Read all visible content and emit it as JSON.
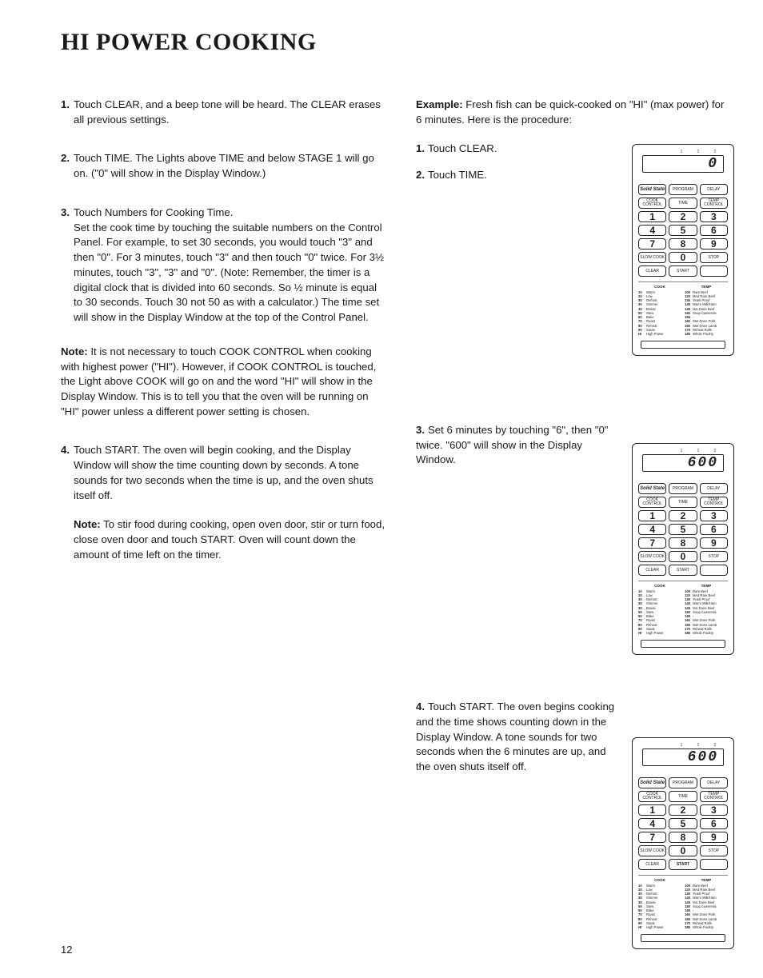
{
  "title": "HI POWER COOKING",
  "page_number": "12",
  "left_steps": [
    {
      "n": "1.",
      "t": "Touch CLEAR, and a beep tone will be heard. The CLEAR erases all previous settings."
    },
    {
      "n": "2.",
      "t": "Touch TIME. The Lights above TIME and below STAGE 1 will go on. (\"0\" will show in the Display Window.)"
    },
    {
      "n": "3.",
      "t": "Touch Numbers for Cooking Time.\nSet the cook time by touching the suitable numbers on the Control Panel. For example, to set 30 seconds, you would touch \"3\" and then \"0\". For 3 minutes, touch \"3\" and then touch \"0\" twice. For 3½ minutes, touch \"3\", \"3\" and \"0\". (Note: Remember, the timer is a digital clock that is divided into 60 seconds. So ½ minute is equal to 30 seconds. Touch 30 not 50 as with a calculator.) The time set will show in the Display Window at the top of the Control Panel."
    }
  ],
  "left_note1": "It is not necessary to touch COOK CONTROL when cooking with highest power (\"HI\"). However, if COOK CONTROL is touched, the Light above COOK will go on and the word \"HI\" will show in the Display Window. This is to tell you that the oven will be running on \"HI\" power unless a different power setting is chosen.",
  "left_step4": {
    "n": "4.",
    "t": "Touch START. The oven will begin cooking, and the Display Window will show the time counting down by seconds. A tone sounds for two seconds when the time is up, and the oven shuts itself off."
  },
  "left_note2": "To stir food during cooking, open oven door, stir or turn food, close oven door and touch START. Oven will count down the amount of time left on the timer.",
  "right_intro": {
    "lbl": "Example:",
    "t": " Fresh fish can be quick-cooked on \"HI\" (max power) for 6 minutes. Here is the procedure:"
  },
  "right_steps": [
    {
      "n": "1.",
      "t": "Touch CLEAR."
    },
    {
      "n": "2.",
      "t": "Touch TIME."
    },
    {
      "n": "3.",
      "t": "Set 6 minutes by touching \"6\", then \"0\" twice. \"600\" will show in the Display Window."
    },
    {
      "n": "4.",
      "t": "Touch START. The oven begins cooking and the time shows counting down in the Display Window. A tone sounds for two seconds when the 6 minutes are up, and the oven shuts itself off."
    }
  ],
  "panels": [
    {
      "display": "0",
      "start_hl": false
    },
    {
      "display": "600",
      "start_hl": false
    },
    {
      "display": "600",
      "start_hl": true
    }
  ],
  "panel_labels": {
    "solid_state": "Solid\nState",
    "program": "PROGRAM",
    "delay": "DELAY",
    "cook_control": "COOK\nCONTROL",
    "time": "TIME",
    "temp_control": "TEMP\nCONTROL",
    "slow_cook": "SLOW\nCOOK",
    "start": "START",
    "stop": "STOP",
    "clear": "CLEAR"
  },
  "guide": {
    "cook_hd": "COOK",
    "temp_hd": "TEMP",
    "cook": [
      [
        "10",
        "Warm"
      ],
      [
        "20",
        "Low"
      ],
      [
        "30",
        "Defrost"
      ],
      [
        "30",
        "Simmer"
      ],
      [
        "30",
        "Braise"
      ],
      [
        "50",
        "Stew"
      ],
      [
        "60",
        "Bake"
      ],
      [
        "70",
        "Roast"
      ],
      [
        "80",
        "Reheat"
      ],
      [
        "90",
        "Saute"
      ],
      [
        "HI",
        "High Power"
      ]
    ],
    "temp": [
      [
        "100",
        "Rare Beef"
      ],
      [
        "120",
        "Med Rare Beef"
      ],
      [
        "130",
        "Yeast Proof"
      ],
      [
        "140",
        "Warm Milk/Ham"
      ],
      [
        "145",
        "Not Done Beef"
      ],
      [
        "150",
        "Soup Casserole"
      ],
      [
        "155",
        "-"
      ],
      [
        "160",
        "Wet Done Pork"
      ],
      [
        "165",
        "Wet Done Lamb"
      ],
      [
        "170",
        "Reheat Rolls"
      ],
      [
        "185",
        "Whole Poultry"
      ]
    ]
  }
}
